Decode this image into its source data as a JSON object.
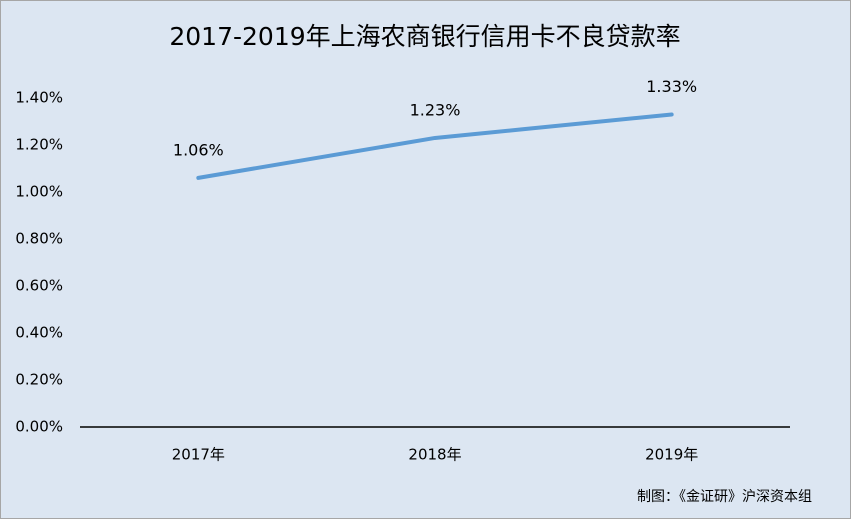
{
  "chart_data": {
    "type": "line",
    "title": "2017-2019年上海农商银行信用卡不良贷款率",
    "categories": [
      "2017年",
      "2018年",
      "2019年"
    ],
    "values": [
      1.06,
      1.23,
      1.33
    ],
    "value_labels": [
      "1.06%",
      "1.23%",
      "1.33%"
    ],
    "color": "#5b9bd5",
    "ylim": [
      0,
      1.4
    ],
    "yticks": [
      {
        "value": 0,
        "label": "0.00%"
      },
      {
        "value": 0.2,
        "label": "0.20%"
      },
      {
        "value": 0.4,
        "label": "0.40%"
      },
      {
        "value": 0.6,
        "label": "0.60%"
      },
      {
        "value": 0.8,
        "label": "0.80%"
      },
      {
        "value": 1.0,
        "label": "1.00%"
      },
      {
        "value": 1.2,
        "label": "1.20%"
      },
      {
        "value": 1.4,
        "label": "1.40%"
      }
    ],
    "grid": false,
    "source": "制图：《金证研》沪深资本组"
  }
}
